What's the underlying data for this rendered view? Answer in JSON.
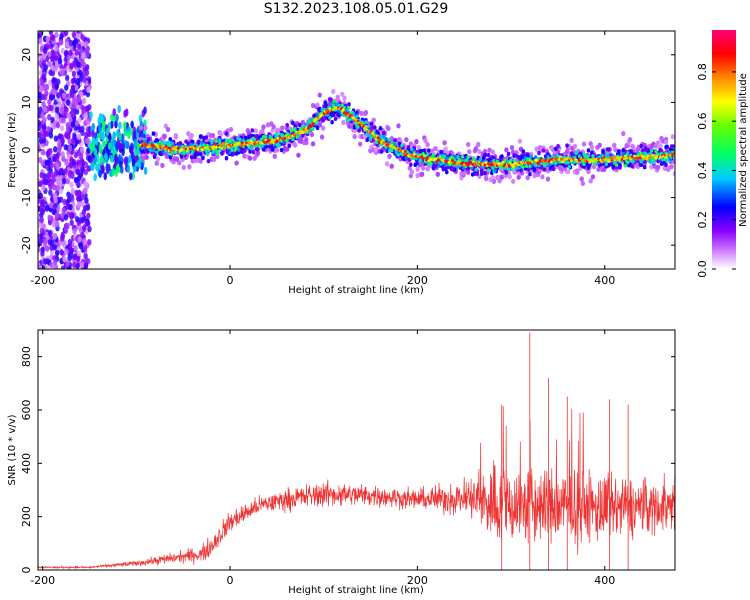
{
  "figure_title": "S132.2023.108.05.01.G29",
  "colors": {
    "snr_line": "#ee3333",
    "axis": "#000000",
    "background": "#ffffff"
  },
  "chart_data": [
    {
      "type": "heatmap",
      "xlabel": "Height of straight line (km)",
      "ylabel": "Frequency (Hz)",
      "xlim": [
        -205,
        475
      ],
      "ylim": [
        -25,
        25
      ],
      "xticks": [
        -200,
        0,
        200,
        400
      ],
      "yticks": [
        -20,
        -10,
        0,
        10,
        20
      ],
      "colorbar": {
        "label": "Normalized spectral amplitude",
        "range": [
          0.0,
          0.97
        ],
        "ticks": [
          "0.0",
          "0.2",
          "0.4",
          "0.6",
          "0.8"
        ],
        "colormap": [
          "#ffffff",
          "#9900ff",
          "#0000ff",
          "#00ffff",
          "#00ff00",
          "#ffff00",
          "#ff8800",
          "#ff0000",
          "#ff0088"
        ]
      },
      "ridge": {
        "x": [
          -150,
          -110,
          -90,
          -50,
          0,
          50,
          80,
          100,
          115,
          130,
          160,
          190,
          220,
          260,
          300,
          350,
          400,
          475
        ],
        "frequency": [
          0,
          1,
          1,
          0,
          1,
          2,
          4,
          8,
          9,
          7,
          2,
          -1,
          -2,
          -3,
          -3,
          -2,
          -2,
          -1
        ]
      },
      "noise_region_x": [
        -205,
        -150
      ]
    },
    {
      "type": "line",
      "xlabel": "Height of straight line (km)",
      "ylabel": "SNR (10 * v/v)",
      "xlim": [
        -205,
        475
      ],
      "ylim": [
        0,
        900
      ],
      "xticks": [
        -200,
        0,
        200,
        400
      ],
      "yticks": [
        0,
        200,
        400,
        600,
        800
      ],
      "envelope": {
        "x": [
          -205,
          -150,
          -100,
          -60,
          -30,
          -20,
          0,
          30,
          60,
          100,
          150,
          200,
          250,
          280,
          320,
          360,
          400,
          475
        ],
        "mean": [
          10,
          10,
          25,
          45,
          60,
          90,
          180,
          240,
          265,
          285,
          280,
          265,
          270,
          250,
          240,
          235,
          230,
          240
        ],
        "spread": [
          5,
          5,
          15,
          30,
          45,
          60,
          60,
          50,
          60,
          70,
          60,
          55,
          100,
          220,
          230,
          210,
          190,
          130
        ]
      },
      "peaks": [
        {
          "x": 290,
          "y": 620
        },
        {
          "x": 320,
          "y": 890
        },
        {
          "x": 340,
          "y": 720
        },
        {
          "x": 360,
          "y": 650
        },
        {
          "x": 405,
          "y": 640
        },
        {
          "x": 425,
          "y": 620
        }
      ]
    }
  ]
}
